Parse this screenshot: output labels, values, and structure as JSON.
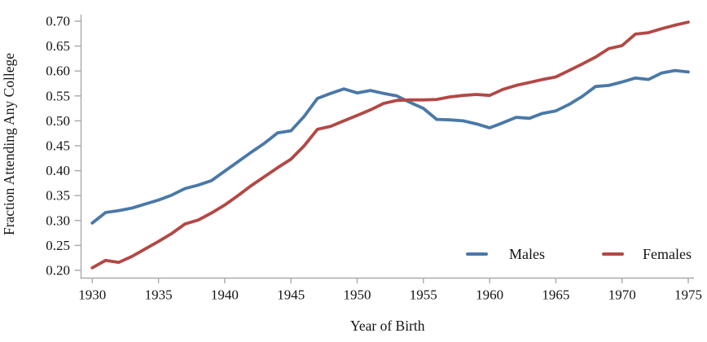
{
  "figure": {
    "xlabel": "Year of Birth",
    "ylabel": "Fraction Attending Any College"
  },
  "legend": {
    "males_label": "Males",
    "females_label": "Females"
  },
  "style": {
    "males_color": "#4A78A8",
    "females_color": "#B24845",
    "axis_color": "#a9a9a9",
    "text_color": "#141414",
    "background": "#ffffff",
    "line_width": 3.8
  },
  "chart_data": {
    "type": "line",
    "title": "",
    "xlabel": "Year of Birth",
    "ylabel": "Fraction Attending Any College",
    "xlim": [
      1930,
      1975
    ],
    "ylim": [
      0.2,
      0.7
    ],
    "xticks": [
      1930,
      1935,
      1940,
      1945,
      1950,
      1955,
      1960,
      1965,
      1970,
      1975
    ],
    "yticks": [
      0.2,
      0.25,
      0.3,
      0.35,
      0.4,
      0.45,
      0.5,
      0.55,
      0.6,
      0.65,
      0.7
    ],
    "grid": false,
    "legend_position": "inside-bottom-right",
    "x": [
      1930,
      1931,
      1932,
      1933,
      1934,
      1935,
      1936,
      1937,
      1938,
      1939,
      1940,
      1941,
      1942,
      1943,
      1944,
      1945,
      1946,
      1947,
      1948,
      1949,
      1950,
      1951,
      1952,
      1953,
      1954,
      1955,
      1956,
      1957,
      1958,
      1959,
      1960,
      1961,
      1962,
      1963,
      1964,
      1965,
      1966,
      1967,
      1968,
      1969,
      1970,
      1971,
      1972,
      1973,
      1974,
      1975
    ],
    "series": [
      {
        "name": "Males",
        "color": "#4A78A8",
        "values": [
          0.295,
          0.316,
          0.32,
          0.325,
          0.333,
          0.341,
          0.351,
          0.364,
          0.371,
          0.38,
          0.399,
          0.418,
          0.437,
          0.455,
          0.476,
          0.48,
          0.509,
          0.545,
          0.555,
          0.564,
          0.556,
          0.561,
          0.555,
          0.55,
          0.537,
          0.525,
          0.503,
          0.502,
          0.5,
          0.494,
          0.486,
          0.496,
          0.507,
          0.505,
          0.515,
          0.52,
          0.533,
          0.549,
          0.569,
          0.571,
          0.578,
          0.586,
          0.583,
          0.596,
          0.601,
          0.598
        ]
      },
      {
        "name": "Females",
        "color": "#B24845",
        "values": [
          0.205,
          0.22,
          0.216,
          0.228,
          0.243,
          0.258,
          0.274,
          0.293,
          0.301,
          0.315,
          0.331,
          0.35,
          0.37,
          0.388,
          0.406,
          0.423,
          0.45,
          0.483,
          0.489,
          0.5,
          0.511,
          0.522,
          0.535,
          0.541,
          0.542,
          0.542,
          0.543,
          0.548,
          0.551,
          0.553,
          0.551,
          0.563,
          0.571,
          0.577,
          0.583,
          0.588,
          0.601,
          0.614,
          0.628,
          0.645,
          0.651,
          0.674,
          0.677,
          0.685,
          0.692,
          0.698
        ]
      }
    ]
  }
}
